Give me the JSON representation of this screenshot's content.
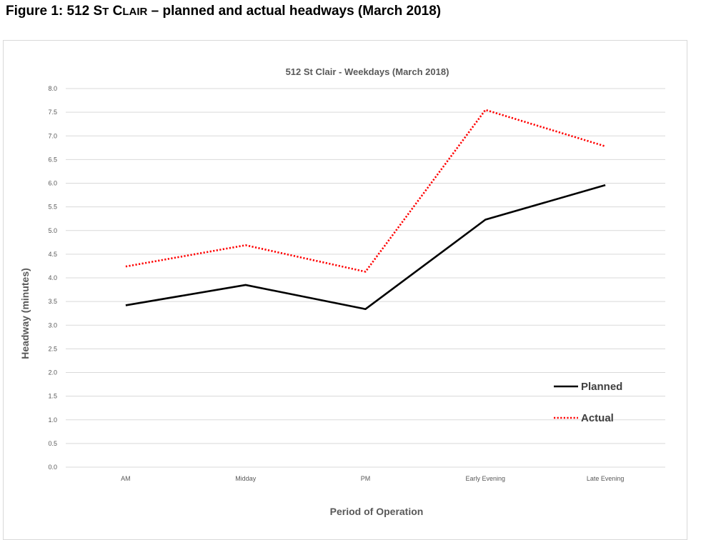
{
  "caption": {
    "prefix": "Figure 1: 512 S",
    "sc1": "T",
    "mid": " C",
    "sc2": "LAIR",
    "suffix": " – planned and actual headways (March 2018)"
  },
  "chart_data": {
    "type": "line",
    "title": "512 St Clair - Weekdays (March 2018)",
    "xlabel": "Period of Operation",
    "ylabel": "Headway (minutes)",
    "categories": [
      "AM",
      "Midday",
      "PM",
      "Early Evening",
      "Late Evening"
    ],
    "ylim": [
      0,
      8
    ],
    "ytick_step": 0.5,
    "ytick_labels": [
      "0.0",
      "0.5",
      "1.0",
      "1.5",
      "2.0",
      "2.5",
      "3.0",
      "3.5",
      "4.0",
      "4.5",
      "5.0",
      "5.5",
      "6.0",
      "6.5",
      "7.0",
      "7.5",
      "8.0"
    ],
    "grid": true,
    "legend_position": "bottom-right",
    "series": [
      {
        "name": "Planned",
        "values": [
          3.42,
          3.85,
          3.34,
          5.23,
          5.96
        ],
        "color": "#000000",
        "style": "solid"
      },
      {
        "name": "Actual",
        "values": [
          4.24,
          4.69,
          4.13,
          7.55,
          6.78
        ],
        "color": "#ff0000",
        "style": "dotted"
      }
    ]
  }
}
